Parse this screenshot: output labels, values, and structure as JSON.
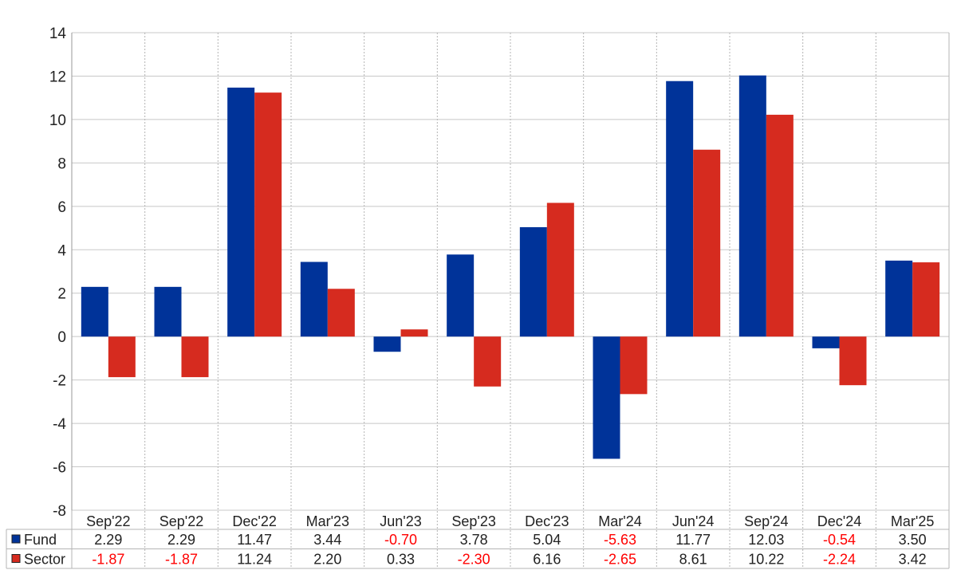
{
  "chart_data": {
    "type": "bar",
    "categories": [
      "Sep'22",
      "Sep'22",
      "Dec'22",
      "Mar'23",
      "Jun'23",
      "Sep'23",
      "Dec'23",
      "Mar'24",
      "Jun'24",
      "Sep'24",
      "Dec'24",
      "Mar'25"
    ],
    "series": [
      {
        "name": "Fund",
        "color": "#003399",
        "values": [
          2.29,
          2.29,
          11.47,
          3.44,
          -0.7,
          3.78,
          5.04,
          -5.63,
          11.77,
          12.03,
          -0.54,
          3.5
        ],
        "labels": [
          "2.29",
          "2.29",
          "11.47",
          "3.44",
          "-0.70",
          "3.78",
          "5.04",
          "-5.63",
          "11.77",
          "12.03",
          "-0.54",
          "3.50"
        ]
      },
      {
        "name": "Sector",
        "color": "#d62b1f",
        "values": [
          -1.87,
          -1.87,
          11.24,
          2.2,
          0.33,
          -2.3,
          6.16,
          -2.65,
          8.61,
          10.22,
          -2.24,
          3.42
        ],
        "labels": [
          "-1.87",
          "-1.87",
          "11.24",
          "2.20",
          "0.33",
          "-2.30",
          "6.16",
          "-2.65",
          "8.61",
          "10.22",
          "-2.24",
          "3.42"
        ]
      }
    ],
    "yticks": [
      "14",
      "12",
      "10",
      "8",
      "6",
      "4",
      "2",
      "0",
      "-2",
      "-4",
      "-6",
      "-8"
    ],
    "ylim": [
      -8,
      14
    ],
    "grid": true,
    "legend": "table-below",
    "negative_label_color": "#ff0000"
  }
}
